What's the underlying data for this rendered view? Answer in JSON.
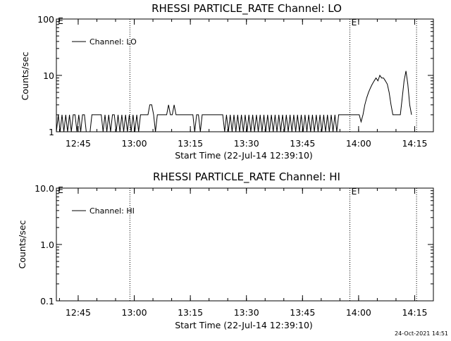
{
  "timestamp": "24-Oct-2021 14:51",
  "chart_data": [
    {
      "type": "line",
      "title": "RHESSI PARTICLE_RATE Channel: LO",
      "xlabel": "Start Time (22-Jul-14 12:39:10)",
      "ylabel": "Counts/sec",
      "yscale": "log",
      "ylim": [
        1,
        100
      ],
      "yticks": [
        1,
        10,
        100
      ],
      "yticklabels": [
        "1",
        "10",
        "100"
      ],
      "xlim": [
        "12:39:10",
        "14:20:00"
      ],
      "xticks": [
        "12:45",
        "13:00",
        "13:15",
        "13:30",
        "13:45",
        "14:00",
        "14:15"
      ],
      "legend": {
        "label": "Channel: LO",
        "position": "top-left"
      },
      "event_markers": [
        {
          "time": "12:58:50",
          "label": ""
        },
        {
          "time": "13:57:40",
          "label": "E"
        },
        {
          "time": "14:15:30",
          "label": ""
        }
      ],
      "corner_label": "E",
      "series": [
        {
          "name": "Channel: LO",
          "points": [
            [
              "12:39:10",
              1
            ],
            [
              "12:39:40",
              2
            ],
            [
              "12:40:10",
              1
            ],
            [
              "12:40:40",
              2
            ],
            [
              "12:41:10",
              1
            ],
            [
              "12:41:40",
              2
            ],
            [
              "12:42:10",
              1
            ],
            [
              "12:42:40",
              2
            ],
            [
              "12:43:10",
              1
            ],
            [
              "12:43:40",
              2
            ],
            [
              "12:44:10",
              2
            ],
            [
              "12:44:40",
              1
            ],
            [
              "12:45:10",
              2
            ],
            [
              "12:45:40",
              1
            ],
            [
              "12:46:10",
              2
            ],
            [
              "12:46:40",
              2
            ],
            [
              "12:47:10",
              1
            ],
            [
              "12:47:40",
              1
            ],
            [
              "12:48:10",
              1
            ],
            [
              "12:48:40",
              2
            ],
            [
              "12:49:10",
              2
            ],
            [
              "12:49:40",
              2
            ],
            [
              "12:50:10",
              2
            ],
            [
              "12:50:40",
              2
            ],
            [
              "12:51:10",
              2
            ],
            [
              "12:51:40",
              1
            ],
            [
              "12:52:10",
              2
            ],
            [
              "12:52:40",
              1
            ],
            [
              "12:53:10",
              2
            ],
            [
              "12:53:40",
              1
            ],
            [
              "12:54:10",
              2
            ],
            [
              "12:54:40",
              2
            ],
            [
              "12:55:10",
              1
            ],
            [
              "12:55:40",
              2
            ],
            [
              "12:56:10",
              1
            ],
            [
              "12:56:40",
              2
            ],
            [
              "12:57:10",
              1
            ],
            [
              "12:57:40",
              2
            ],
            [
              "12:58:10",
              1
            ],
            [
              "12:58:40",
              2
            ],
            [
              "12:59:10",
              1
            ],
            [
              "12:59:40",
              2
            ],
            [
              "13:00:10",
              1
            ],
            [
              "13:00:40",
              2
            ],
            [
              "13:01:10",
              1
            ],
            [
              "13:01:40",
              2
            ],
            [
              "13:02:10",
              2
            ],
            [
              "13:02:40",
              2
            ],
            [
              "13:03:10",
              2
            ],
            [
              "13:03:40",
              2
            ],
            [
              "13:04:10",
              3
            ],
            [
              "13:04:40",
              3
            ],
            [
              "13:05:10",
              2
            ],
            [
              "13:05:40",
              1
            ],
            [
              "13:06:10",
              2
            ],
            [
              "13:06:40",
              2
            ],
            [
              "13:07:10",
              2
            ],
            [
              "13:07:40",
              2
            ],
            [
              "13:08:10",
              2
            ],
            [
              "13:08:40",
              2
            ],
            [
              "13:09:10",
              3
            ],
            [
              "13:09:40",
              2
            ],
            [
              "13:10:10",
              2
            ],
            [
              "13:10:40",
              3
            ],
            [
              "13:11:10",
              2
            ],
            [
              "13:11:40",
              2
            ],
            [
              "13:12:10",
              2
            ],
            [
              "13:12:40",
              2
            ],
            [
              "13:13:10",
              2
            ],
            [
              "13:13:40",
              2
            ],
            [
              "13:14:10",
              2
            ],
            [
              "13:14:40",
              2
            ],
            [
              "13:15:10",
              2
            ],
            [
              "13:15:40",
              2
            ],
            [
              "13:16:10",
              1
            ],
            [
              "13:16:40",
              2
            ],
            [
              "13:17:10",
              2
            ],
            [
              "13:17:40",
              1
            ],
            [
              "13:18:10",
              2
            ],
            [
              "13:18:40",
              2
            ],
            [
              "13:19:10",
              2
            ],
            [
              "13:19:40",
              2
            ],
            [
              "13:20:10",
              2
            ],
            [
              "13:20:40",
              2
            ],
            [
              "13:21:10",
              2
            ],
            [
              "13:21:40",
              2
            ],
            [
              "13:22:10",
              2
            ],
            [
              "13:22:40",
              2
            ],
            [
              "13:23:10",
              2
            ],
            [
              "13:23:40",
              2
            ],
            [
              "13:24:10",
              1
            ],
            [
              "13:24:40",
              2
            ],
            [
              "13:25:10",
              1
            ],
            [
              "13:25:40",
              2
            ],
            [
              "13:26:10",
              1
            ],
            [
              "13:26:40",
              2
            ],
            [
              "13:27:10",
              1
            ],
            [
              "13:27:40",
              2
            ],
            [
              "13:28:10",
              1
            ],
            [
              "13:28:40",
              2
            ],
            [
              "13:29:10",
              1
            ],
            [
              "13:29:40",
              2
            ],
            [
              "13:30:10",
              1
            ],
            [
              "13:30:40",
              2
            ],
            [
              "13:31:10",
              1
            ],
            [
              "13:31:40",
              2
            ],
            [
              "13:32:10",
              1
            ],
            [
              "13:32:40",
              2
            ],
            [
              "13:33:10",
              1
            ],
            [
              "13:33:40",
              2
            ],
            [
              "13:34:10",
              1
            ],
            [
              "13:34:40",
              2
            ],
            [
              "13:35:10",
              1
            ],
            [
              "13:35:40",
              2
            ],
            [
              "13:36:10",
              1
            ],
            [
              "13:36:40",
              2
            ],
            [
              "13:37:10",
              1
            ],
            [
              "13:37:40",
              2
            ],
            [
              "13:38:10",
              1
            ],
            [
              "13:38:40",
              2
            ],
            [
              "13:39:10",
              1
            ],
            [
              "13:39:40",
              2
            ],
            [
              "13:40:10",
              1
            ],
            [
              "13:40:40",
              2
            ],
            [
              "13:41:10",
              1
            ],
            [
              "13:41:40",
              2
            ],
            [
              "13:42:10",
              1
            ],
            [
              "13:42:40",
              2
            ],
            [
              "13:43:10",
              1
            ],
            [
              "13:43:40",
              2
            ],
            [
              "13:44:10",
              1
            ],
            [
              "13:44:40",
              2
            ],
            [
              "13:45:10",
              1
            ],
            [
              "13:45:40",
              2
            ],
            [
              "13:46:10",
              1
            ],
            [
              "13:46:40",
              2
            ],
            [
              "13:47:10",
              1
            ],
            [
              "13:47:40",
              2
            ],
            [
              "13:48:10",
              1
            ],
            [
              "13:48:40",
              2
            ],
            [
              "13:49:10",
              1
            ],
            [
              "13:49:40",
              2
            ],
            [
              "13:50:10",
              1
            ],
            [
              "13:50:40",
              2
            ],
            [
              "13:51:10",
              1
            ],
            [
              "13:51:40",
              2
            ],
            [
              "13:52:10",
              1
            ],
            [
              "13:52:40",
              2
            ],
            [
              "13:53:10",
              1
            ],
            [
              "13:53:40",
              2
            ],
            [
              "13:54:10",
              1
            ],
            [
              "13:54:40",
              2
            ],
            [
              "13:55:10",
              2
            ],
            [
              "13:55:40",
              2
            ],
            [
              "13:57:40",
              2
            ],
            [
              "13:59:40",
              2
            ],
            [
              "14:00:10",
              2
            ],
            [
              "14:00:40",
              1.5
            ],
            [
              "14:01:10",
              2
            ],
            [
              "14:01:40",
              3
            ],
            [
              "14:02:10",
              4
            ],
            [
              "14:02:40",
              5
            ],
            [
              "14:03:10",
              6
            ],
            [
              "14:03:40",
              7
            ],
            [
              "14:04:10",
              8
            ],
            [
              "14:04:40",
              9
            ],
            [
              "14:05:10",
              8
            ],
            [
              "14:05:40",
              10
            ],
            [
              "14:06:10",
              9
            ],
            [
              "14:06:40",
              9
            ],
            [
              "14:07:10",
              8
            ],
            [
              "14:07:40",
              7
            ],
            [
              "14:08:10",
              5
            ],
            [
              "14:08:40",
              3
            ],
            [
              "14:09:10",
              2
            ],
            [
              "14:09:40",
              2
            ],
            [
              "14:10:10",
              2
            ],
            [
              "14:10:40",
              2
            ],
            [
              "14:11:10",
              2
            ],
            [
              "14:11:40",
              4
            ],
            [
              "14:12:10",
              8
            ],
            [
              "14:12:40",
              12
            ],
            [
              "14:13:10",
              7
            ],
            [
              "14:13:40",
              3
            ],
            [
              "14:14:10",
              2
            ]
          ]
        }
      ]
    },
    {
      "type": "line",
      "title": "RHESSI PARTICLE_RATE Channel: HI",
      "xlabel": "Start Time (22-Jul-14 12:39:10)",
      "ylabel": "Counts/sec",
      "yscale": "log",
      "ylim": [
        0.1,
        10
      ],
      "yticks": [
        0.1,
        1,
        10
      ],
      "yticklabels": [
        "0.1",
        "1.0",
        "10.0"
      ],
      "xlim": [
        "12:39:10",
        "14:20:00"
      ],
      "xticks": [
        "12:45",
        "13:00",
        "13:15",
        "13:30",
        "13:45",
        "14:00",
        "14:15"
      ],
      "legend": {
        "label": "Channel: HI",
        "position": "top-left"
      },
      "event_markers": [
        {
          "time": "12:58:50",
          "label": ""
        },
        {
          "time": "13:57:40",
          "label": "E"
        },
        {
          "time": "14:15:30",
          "label": ""
        }
      ],
      "corner_label": "E",
      "series": [
        {
          "name": "Channel: HI",
          "points": []
        }
      ]
    }
  ]
}
